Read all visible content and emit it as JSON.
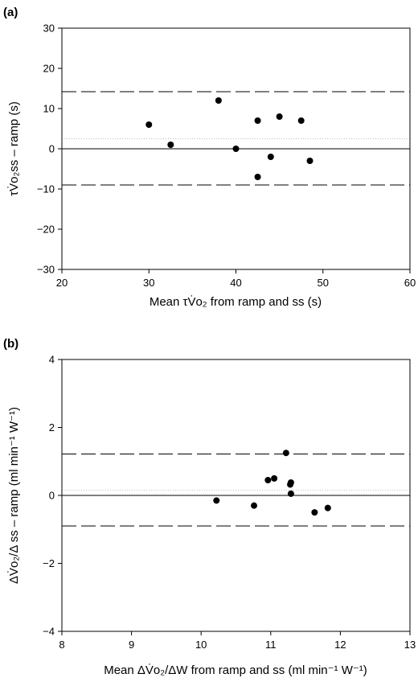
{
  "chart_data": [
    {
      "type": "scatter",
      "panel_label": "(a)",
      "xlabel": "Mean τV̇o₂ from ramp and ss (s)",
      "ylabel": "τV̇o₂ss – ramp (s)",
      "xlim": [
        20,
        60
      ],
      "ylim": [
        -30,
        30
      ],
      "xticks": [
        "20",
        "30",
        "40",
        "50",
        "60"
      ],
      "yticks": [
        "30",
        "20",
        "10",
        "0",
        "−10",
        "−20",
        "−30"
      ],
      "x_tick_values": [
        20,
        30,
        40,
        50,
        60
      ],
      "y_tick_values": [
        30,
        20,
        10,
        0,
        -10,
        -20,
        -30
      ],
      "mean_line": 2.5,
      "limits_of_agreement": [
        14.2,
        -9.0
      ],
      "zero_line": 0,
      "points": [
        {
          "x": 30.0,
          "y": 6
        },
        {
          "x": 32.5,
          "y": 1
        },
        {
          "x": 38.0,
          "y": 12
        },
        {
          "x": 40.0,
          "y": 0
        },
        {
          "x": 42.5,
          "y": 7
        },
        {
          "x": 42.5,
          "y": -7
        },
        {
          "x": 44.0,
          "y": -2
        },
        {
          "x": 45.0,
          "y": 8
        },
        {
          "x": 47.5,
          "y": 7
        },
        {
          "x": 48.5,
          "y": -3
        }
      ]
    },
    {
      "type": "scatter",
      "panel_label": "(b)",
      "xlabel": "Mean ΔV̇o₂/ΔW from ramp and ss (ml min⁻¹ W⁻¹)",
      "ylabel": "ΔV̇o₂/Δ ss – ramp (ml min⁻¹ W⁻¹)",
      "xlim": [
        8,
        13
      ],
      "ylim": [
        -4,
        4
      ],
      "xticks": [
        "8",
        "9",
        "10",
        "11",
        "12",
        "13"
      ],
      "yticks": [
        "4",
        "2",
        "0",
        "−2",
        "−4"
      ],
      "x_tick_values": [
        8,
        9,
        10,
        11,
        12,
        13
      ],
      "y_tick_values": [
        4,
        2,
        0,
        -2,
        -4
      ],
      "mean_line": 0.15,
      "limits_of_agreement": [
        1.22,
        -0.9
      ],
      "zero_line": 0,
      "points": [
        {
          "x": 10.22,
          "y": -0.15
        },
        {
          "x": 10.76,
          "y": -0.3
        },
        {
          "x": 10.96,
          "y": 0.45
        },
        {
          "x": 11.05,
          "y": 0.5
        },
        {
          "x": 11.22,
          "y": 1.25
        },
        {
          "x": 11.28,
          "y": 0.32
        },
        {
          "x": 11.29,
          "y": 0.38
        },
        {
          "x": 11.29,
          "y": 0.05
        },
        {
          "x": 11.63,
          "y": -0.5
        },
        {
          "x": 11.82,
          "y": -0.37
        }
      ]
    }
  ]
}
